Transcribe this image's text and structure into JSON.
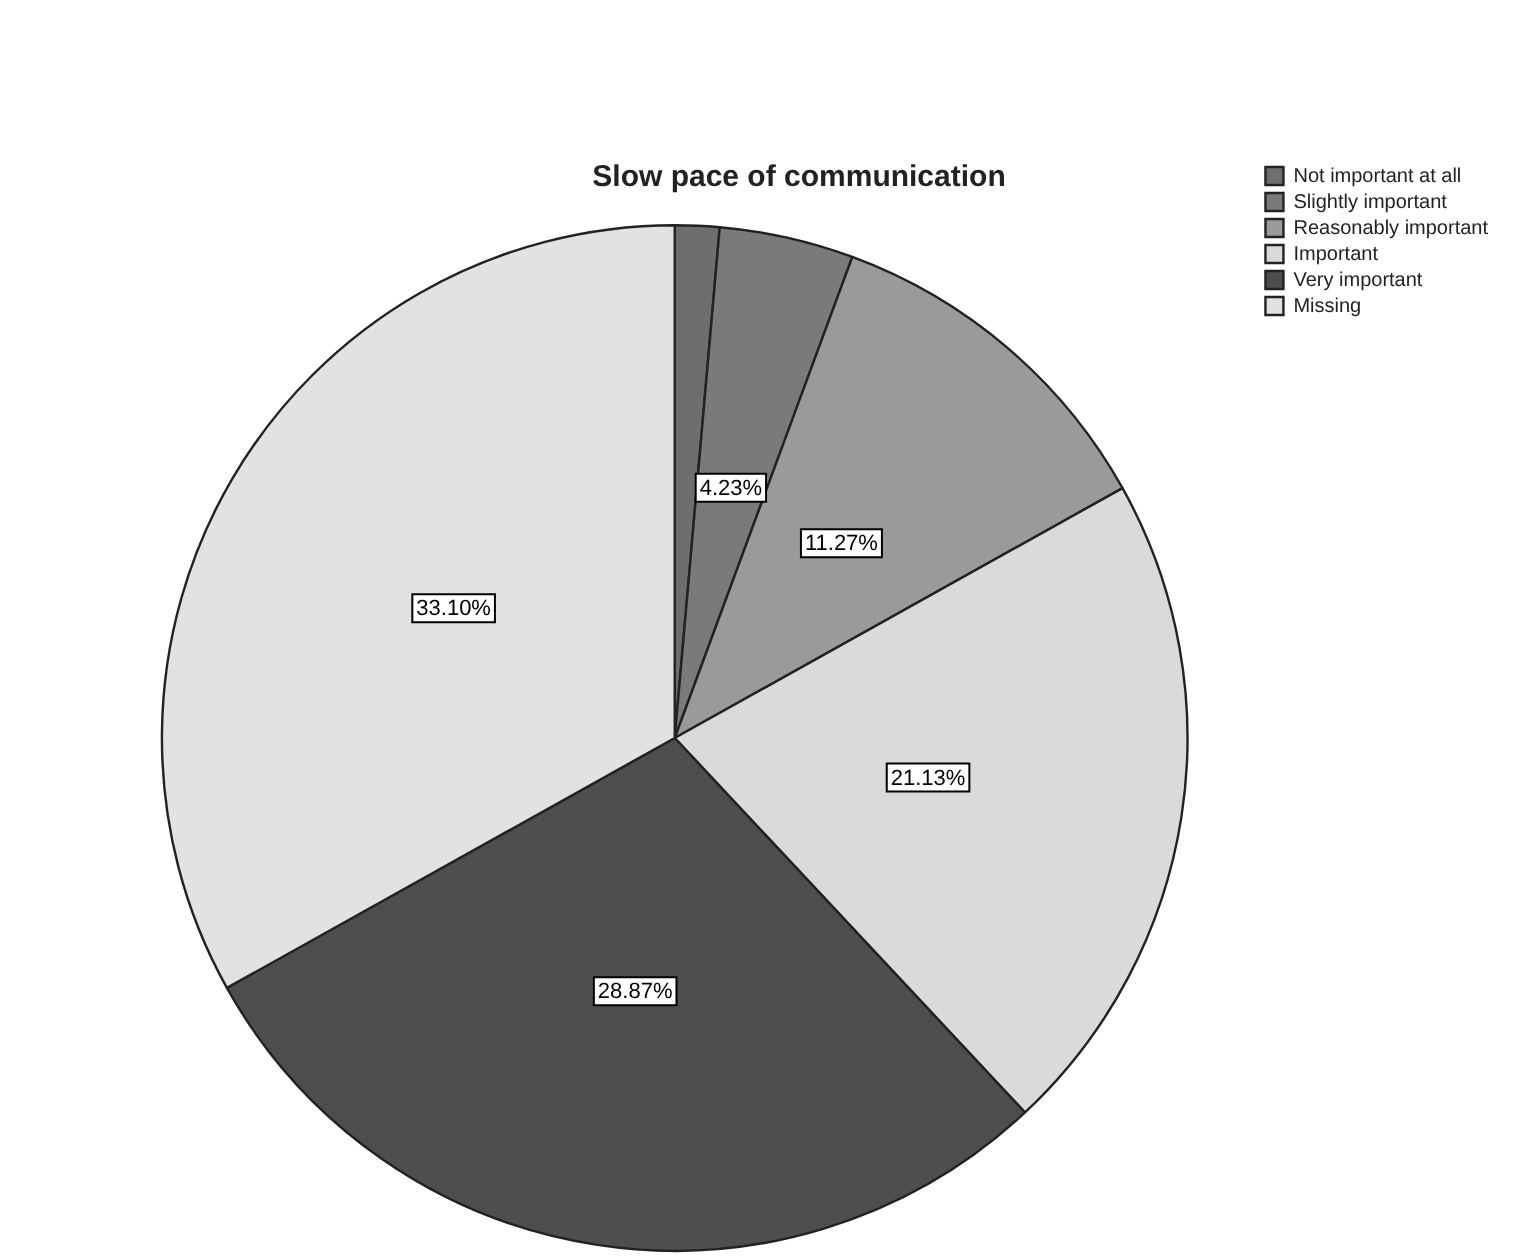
{
  "chart_data": {
    "type": "pie",
    "title": "Slow pace of communication",
    "categories": [
      "Not important at all",
      "Slightly important",
      "Reasonably important",
      "Important",
      "Very important",
      "Missing"
    ],
    "values": [
      1.4,
      4.23,
      11.27,
      21.13,
      28.87,
      33.1
    ],
    "value_labels": [
      null,
      "4.23%",
      "11.27%",
      "21.13%",
      "28.87%",
      "33.10%"
    ],
    "colors": [
      "#6e6e6e",
      "#7a7a7a",
      "#9a9a9a",
      "#dadada",
      "#4e4e4e",
      "#e2e2e2"
    ],
    "legend": "top right"
  }
}
